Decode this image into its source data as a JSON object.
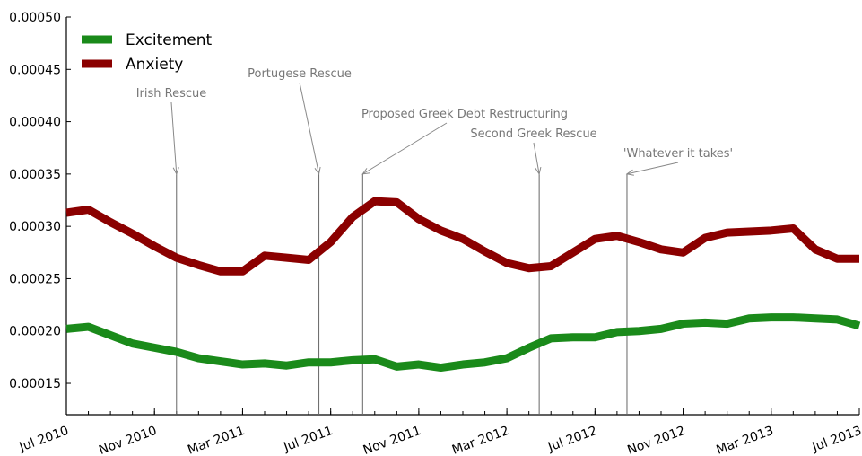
{
  "chart_data": {
    "type": "line",
    "x": [
      "2010-07",
      "2010-08",
      "2010-09",
      "2010-10",
      "2010-11",
      "2010-12",
      "2011-01",
      "2011-02",
      "2011-03",
      "2011-04",
      "2011-05",
      "2011-06",
      "2011-07",
      "2011-08",
      "2011-09",
      "2011-10",
      "2011-11",
      "2011-12",
      "2012-01",
      "2012-02",
      "2012-03",
      "2012-04",
      "2012-05",
      "2012-06",
      "2012-07",
      "2012-08",
      "2012-09",
      "2012-10",
      "2012-11",
      "2012-12",
      "2013-01",
      "2013-02",
      "2013-03",
      "2013-04",
      "2013-05",
      "2013-06",
      "2013-07"
    ],
    "series": [
      {
        "name": "Excitement",
        "color": "#1a8a1a",
        "values": [
          0.000202,
          0.000204,
          0.000196,
          0.000188,
          0.000184,
          0.00018,
          0.000174,
          0.000171,
          0.000168,
          0.000169,
          0.000167,
          0.00017,
          0.00017,
          0.000172,
          0.000173,
          0.000166,
          0.000168,
          0.000165,
          0.000168,
          0.00017,
          0.000174,
          0.000184,
          0.000193,
          0.000194,
          0.000194,
          0.000199,
          0.0002,
          0.000202,
          0.000207,
          0.000208,
          0.000207,
          0.000212,
          0.000213,
          0.000213,
          0.000212,
          0.000211,
          0.000205
        ]
      },
      {
        "name": "Anxiety",
        "color": "#8b0000",
        "values": [
          0.000313,
          0.000316,
          0.000304,
          0.000293,
          0.000281,
          0.00027,
          0.000263,
          0.000257,
          0.000257,
          0.000272,
          0.00027,
          0.000268,
          0.000285,
          0.000309,
          0.000324,
          0.000323,
          0.000307,
          0.000296,
          0.000288,
          0.000276,
          0.000265,
          0.00026,
          0.000262,
          0.000275,
          0.000288,
          0.000291,
          0.000285,
          0.000278,
          0.000275,
          0.000289,
          0.000294,
          0.000295,
          0.000296,
          0.000298,
          0.000278,
          0.000269,
          0.000269
        ]
      }
    ],
    "xlim": [
      "2010-07",
      "2013-07"
    ],
    "ylim": [
      0.00012,
      0.0005
    ],
    "yticks": [
      "0.00015",
      "0.00020",
      "0.00025",
      "0.00030",
      "0.00035",
      "0.00040",
      "0.00045",
      "0.00050"
    ],
    "ytick_values": [
      0.00015,
      0.0002,
      0.00025,
      0.0003,
      0.00035,
      0.0004,
      0.00045,
      0.0005
    ],
    "xticks": [
      {
        "label": "Jul 2010",
        "x": "2010-07"
      },
      {
        "label": "Nov 2010",
        "x": "2010-11"
      },
      {
        "label": "Mar 2011",
        "x": "2011-03"
      },
      {
        "label": "Jul 2011",
        "x": "2011-07"
      },
      {
        "label": "Nov 2011",
        "x": "2011-11"
      },
      {
        "label": "Mar 2012",
        "x": "2012-03"
      },
      {
        "label": "Jul 2012",
        "x": "2012-07"
      },
      {
        "label": "Nov 2012",
        "x": "2012-11"
      },
      {
        "label": "Mar 2013",
        "x": "2013-03"
      },
      {
        "label": "Jul 2013",
        "x": "2013-07"
      }
    ],
    "annotations": [
      {
        "label": "Irish Rescue",
        "x": "2010-12-01",
        "y_top": 0.00035
      },
      {
        "label": "Portugese Rescue",
        "x": "2011-06-15",
        "y_top": 0.00035
      },
      {
        "label": "Proposed Greek Debt Restructuring",
        "x": "2011-08-15",
        "y_top": 0.00035
      },
      {
        "label": "Second Greek Rescue",
        "x": "2012-04-15",
        "y_top": 0.00035
      },
      {
        "label": "'Whatever it takes'",
        "x": "2012-08-15",
        "y_top": 0.00035
      }
    ],
    "legend": {
      "position": "top-left",
      "entries": [
        "Excitement",
        "Anxiety"
      ]
    },
    "grid": false
  }
}
